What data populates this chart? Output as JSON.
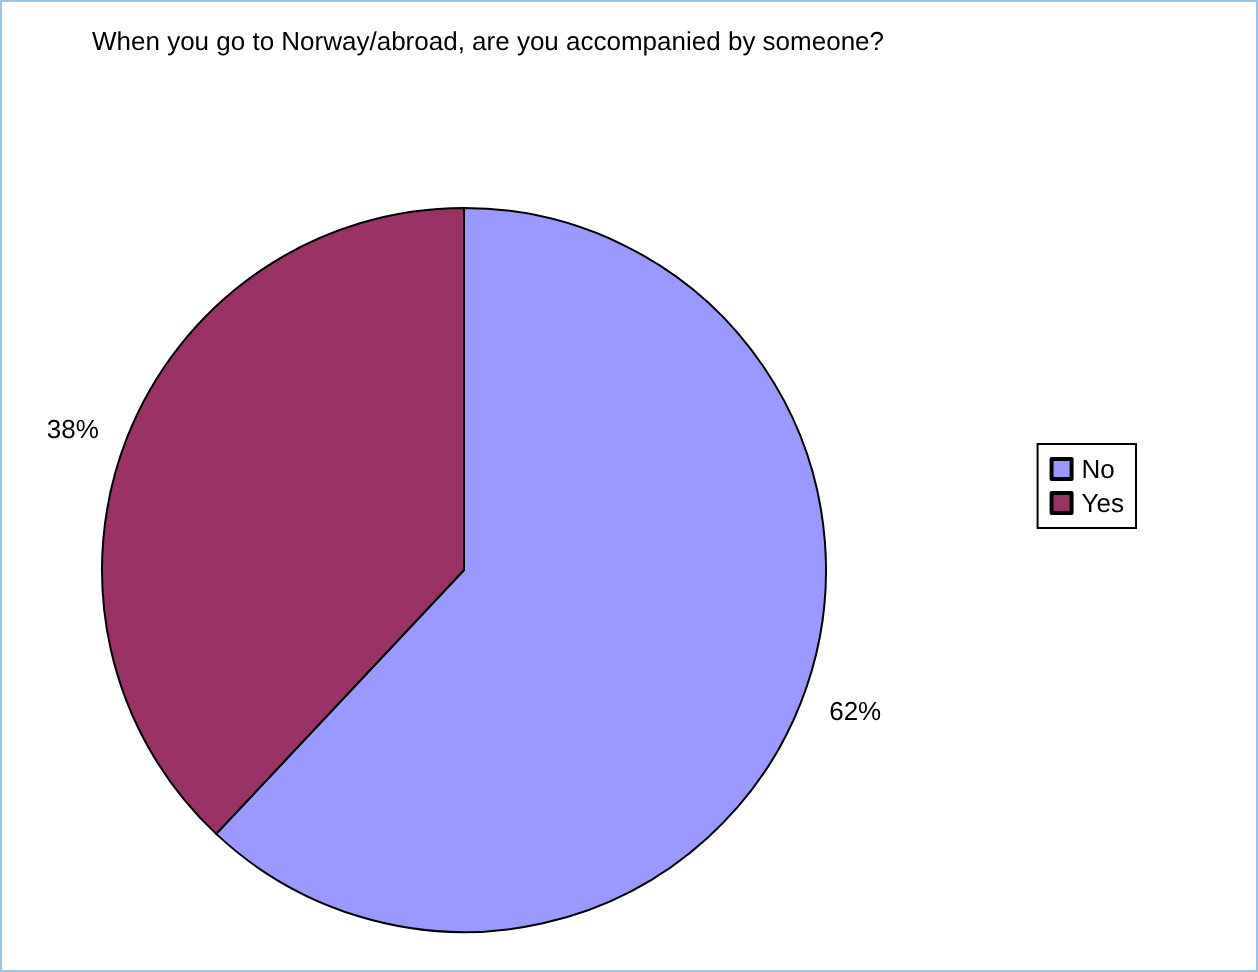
{
  "chart_data": {
    "type": "pie",
    "title": "When you go to Norway/abroad, are you accompanied by someone?",
    "categories": [
      "No",
      "Yes"
    ],
    "values": [
      62,
      38
    ],
    "colors": [
      "#9999ff",
      "#993366"
    ],
    "value_labels": [
      "62%",
      "38%"
    ],
    "legend": "right"
  }
}
